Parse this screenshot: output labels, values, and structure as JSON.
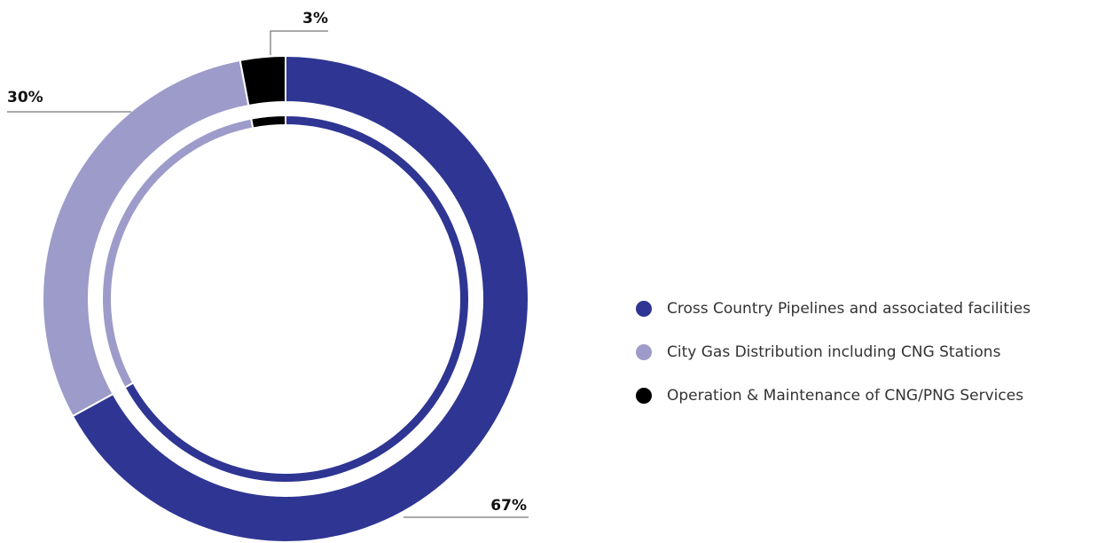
{
  "chart_data": {
    "type": "donut",
    "categories": [
      "Cross Country Pipelines and associated facilities",
      "City Gas Distribution including CNG Stations",
      "Operation & Maintenance of CNG/PNG Services"
    ],
    "values": [
      67,
      30,
      3
    ],
    "value_labels": [
      "67%",
      "30%",
      "3%"
    ],
    "colors": [
      "#2e3592",
      "#9d9bc9",
      "#000000"
    ],
    "legend": "right"
  }
}
